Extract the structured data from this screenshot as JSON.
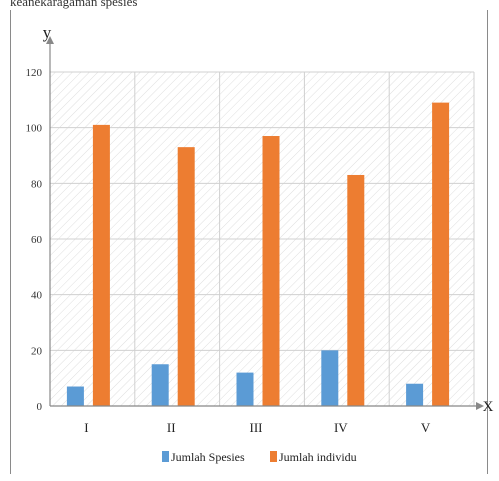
{
  "caption_top": "keanekaragaman spesies",
  "chart_data": {
    "type": "bar",
    "categories": [
      "I",
      "II",
      "III",
      "IV",
      "V"
    ],
    "series": [
      {
        "name": "Jumlah Spesies",
        "values": [
          7,
          15,
          12,
          20,
          8
        ],
        "color": "#5b9bd5"
      },
      {
        "name": "Jumlah individu",
        "values": [
          101,
          93,
          97,
          83,
          109
        ],
        "color": "#ed7d31"
      }
    ],
    "ylim": [
      0,
      120
    ],
    "yticks": [
      0,
      20,
      40,
      60,
      80,
      100,
      120
    ],
    "ytick_labels": [
      "0",
      "20",
      "40",
      "60",
      "80",
      "100",
      "120"
    ],
    "xlabel": "X",
    "ylabel": "y",
    "grid": true,
    "legend": "bottom"
  }
}
